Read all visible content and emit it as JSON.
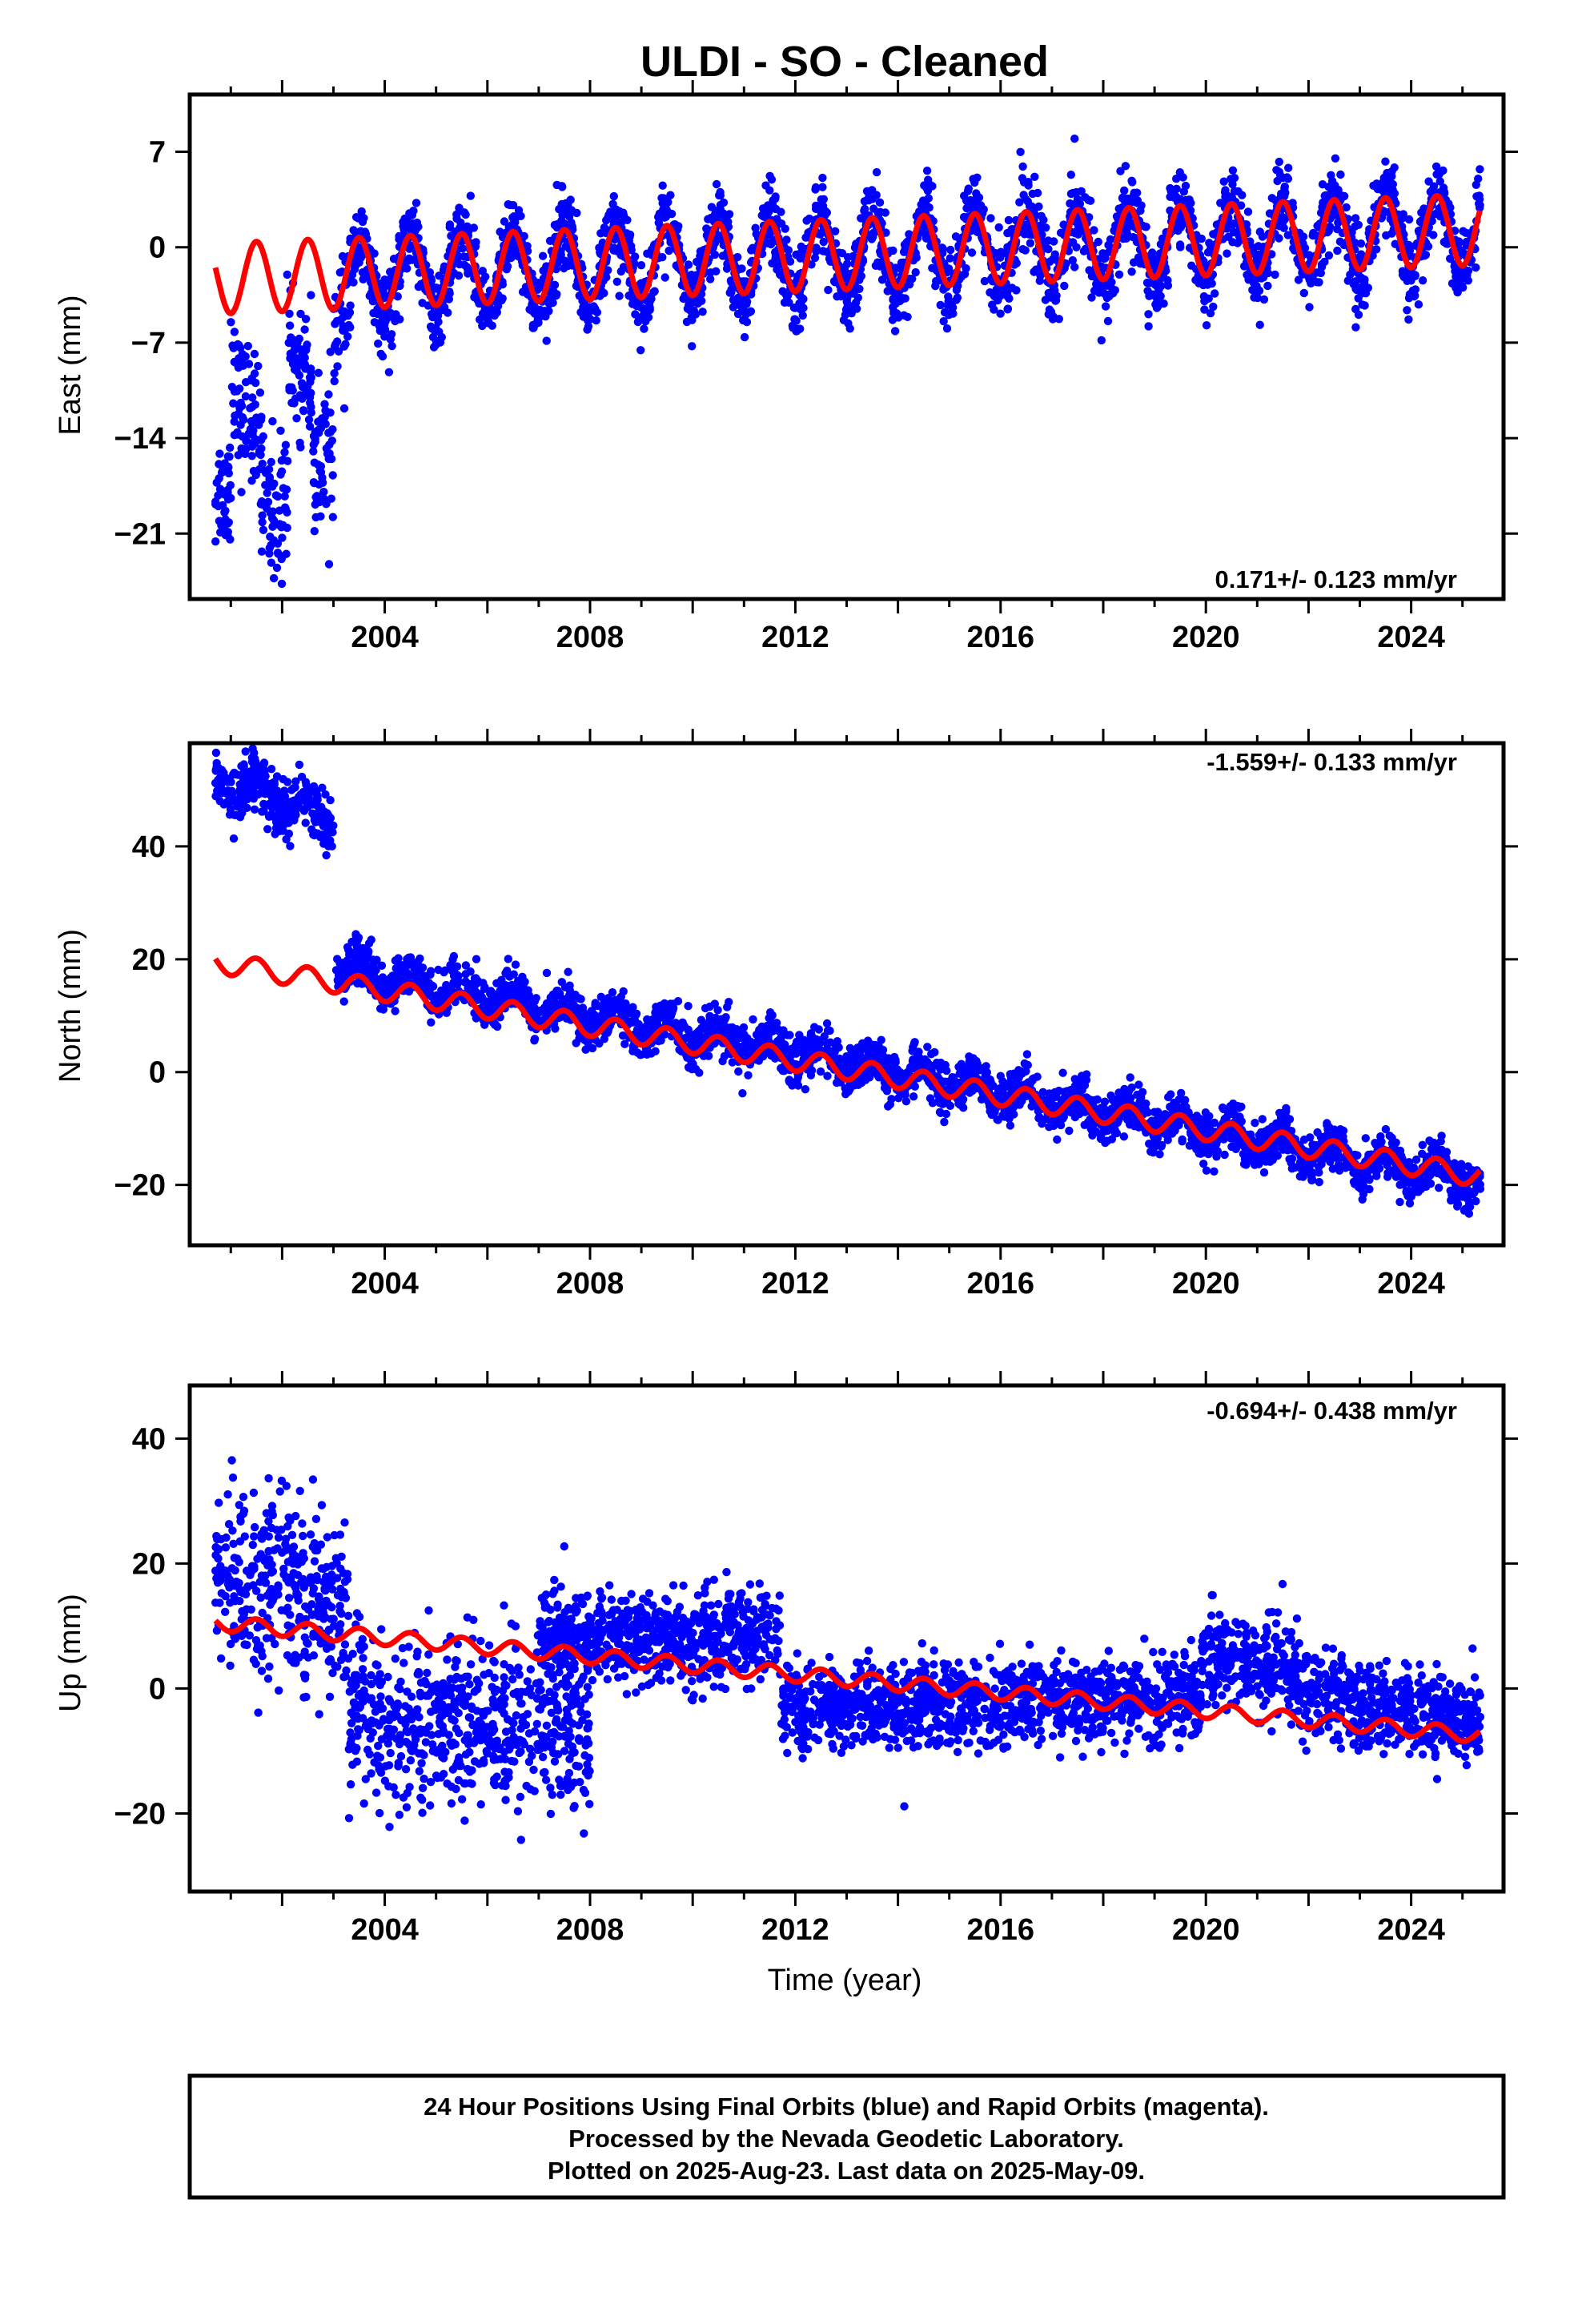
{
  "chart_data": [
    {
      "type": "scatter",
      "title": "ULDI  - SO - Cleaned",
      "ylabel": "East (mm)",
      "xlabel": "",
      "xlim": [
        2000.2,
        2025.8
      ],
      "ylim": [
        -25.8,
        11.2
      ],
      "yticks": [
        "7",
        "0",
        "−7",
        "−14",
        "−21"
      ],
      "ytick_values": [
        7,
        0,
        -7,
        -14,
        -21
      ],
      "xticks": [
        "2004",
        "2008",
        "2012",
        "2016",
        "2020",
        "2024"
      ],
      "xtick_values": [
        2004,
        2008,
        2012,
        2016,
        2020,
        2024
      ],
      "rate_text": "0.171+/- 0.123 mm/yr",
      "grid": false,
      "series": [
        {
          "color": "#0000ff",
          "marker": "dot",
          "segments": [
            {
              "x0": 2000.7,
              "x1": 2001.0,
              "mean0": -18.0,
              "mean1": -17.5,
              "noise": 2.2,
              "amp": 0
            },
            {
              "x0": 2001.0,
              "x1": 2001.6,
              "mean0": -11.0,
              "mean1": -13.0,
              "noise": 2.6,
              "amp": 0
            },
            {
              "x0": 2001.6,
              "x1": 2002.1,
              "mean0": -18.0,
              "mean1": -20.0,
              "noise": 2.8,
              "amp": 0
            },
            {
              "x0": 2002.1,
              "x1": 2002.6,
              "mean0": -8.0,
              "mean1": -10.0,
              "noise": 2.2,
              "amp": 0
            },
            {
              "x0": 2002.6,
              "x1": 2003.0,
              "mean0": -16.0,
              "mean1": -16.0,
              "noise": 3.0,
              "amp": 0
            },
            {
              "x0": 2003.0,
              "x1": 2003.35,
              "mean0": -7.0,
              "mean1": -3.0,
              "noise": 2.5,
              "amp": 0
            },
            {
              "x0": 2003.35,
              "x1": 2025.35,
              "mean0": -2.2,
              "mean1": 1.3,
              "noise": 1.4,
              "amp": 2.8
            }
          ]
        },
        {
          "color": "#ff0000",
          "marker": "line",
          "segments": [
            {
              "x0": 2000.7,
              "x1": 2025.35,
              "mean0": -2.3,
              "mean1": 1.3,
              "noise": 0,
              "amp": 2.6
            }
          ]
        }
      ]
    },
    {
      "type": "scatter",
      "title": "",
      "ylabel": "North (mm)",
      "xlabel": "",
      "xlim": [
        2000.2,
        2025.8
      ],
      "ylim": [
        -30.7,
        58.3
      ],
      "yticks": [
        "40",
        "20",
        "0",
        "−20"
      ],
      "ytick_values": [
        40,
        20,
        0,
        -20
      ],
      "xticks": [
        "2004",
        "2008",
        "2012",
        "2016",
        "2020",
        "2024"
      ],
      "xtick_values": [
        2004,
        2008,
        2012,
        2016,
        2020,
        2024
      ],
      "rate_text": "-1.559+/- 0.133 mm/yr",
      "grid": false,
      "series": [
        {
          "color": "#0000ff",
          "marker": "dot",
          "segments": [
            {
              "x0": 2000.7,
              "x1": 2003.0,
              "mean0": 52.0,
              "mean1": 45.0,
              "noise": 2.6,
              "amp": 1.5
            },
            {
              "x0": 2003.05,
              "x1": 2025.35,
              "mean0": 18.5,
              "mean1": -19.5,
              "noise": 2.0,
              "amp": 2.0
            }
          ]
        },
        {
          "color": "#ff0000",
          "marker": "line",
          "segments": [
            {
              "x0": 2000.7,
              "x1": 2025.35,
              "mean0": 19.5,
              "mean1": -18.5,
              "noise": 0,
              "amp": 1.9
            }
          ]
        }
      ]
    },
    {
      "type": "scatter",
      "title": "",
      "ylabel": "Up (mm)",
      "xlabel": "Time (year)",
      "xlim": [
        2000.2,
        2025.8
      ],
      "ylim": [
        -32.5,
        48.5
      ],
      "yticks": [
        "40",
        "20",
        "0",
        "−20"
      ],
      "ytick_values": [
        40,
        20,
        0,
        -20
      ],
      "xticks": [
        "2004",
        "2008",
        "2012",
        "2016",
        "2020",
        "2024"
      ],
      "xtick_values": [
        2004,
        2008,
        2012,
        2016,
        2020,
        2024
      ],
      "rate_text": "-0.694+/- 0.438 mm/yr",
      "grid": false,
      "series": [
        {
          "color": "#0000ff",
          "marker": "dot",
          "segments": [
            {
              "x0": 2000.7,
              "x1": 2003.3,
              "mean0": 18.0,
              "mean1": 14.0,
              "noise": 7.0,
              "amp": 0
            },
            {
              "x0": 2003.3,
              "x1": 2008.0,
              "mean0": -6.0,
              "mean1": -5.0,
              "noise": 6.5,
              "amp": 0
            },
            {
              "x0": 2007.0,
              "x1": 2011.7,
              "mean0": 8.5,
              "mean1": 8.0,
              "noise": 3.6,
              "amp": 0
            },
            {
              "x0": 2011.7,
              "x1": 2019.9,
              "mean0": -3.0,
              "mean1": -1.5,
              "noise": 3.4,
              "amp": 0
            },
            {
              "x0": 2019.9,
              "x1": 2021.8,
              "mean0": 5.0,
              "mean1": 3.0,
              "noise": 3.5,
              "amp": 0
            },
            {
              "x0": 2021.8,
              "x1": 2025.35,
              "mean0": -1.0,
              "mean1": -5.0,
              "noise": 3.4,
              "amp": 0
            }
          ]
        },
        {
          "color": "#ff0000",
          "marker": "line",
          "segments": [
            {
              "x0": 2000.7,
              "x1": 2025.35,
              "mean0": 10.5,
              "mean1": -7.5,
              "noise": 0,
              "amp": 1.2
            }
          ]
        }
      ]
    }
  ],
  "footer": {
    "line1": "24 Hour Positions Using Final Orbits (blue) and Rapid Orbits (magenta).",
    "line2": "Processed by the Nevada Geodetic Laboratory.",
    "line3": "Plotted on 2025-Aug-23. Last data on 2025-May-09."
  },
  "colors": {
    "observed": "#0000ff",
    "model": "#ff0000",
    "frame": "#000000"
  }
}
